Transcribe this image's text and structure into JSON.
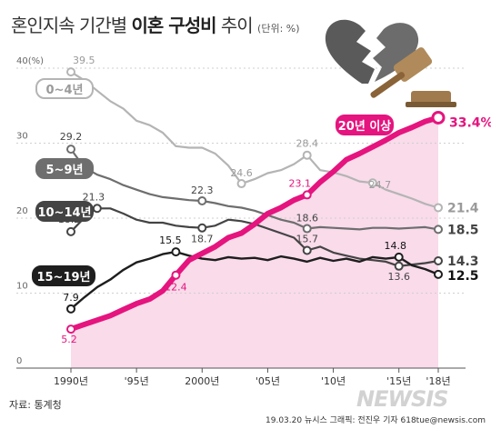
{
  "title": {
    "part1": "혼인지속 기간별",
    "part2": "이혼 구성비",
    "part3": "추이",
    "unit": "(단위: %)"
  },
  "source": "자료: 통계청",
  "credit": "19.03.20 뉴시스 그래픽: 전진우 기자 618tue@newsis.com",
  "watermark": "NEWSIS",
  "chart_data": {
    "type": "line",
    "title": "혼인지속 기간별 이혼 구성비 추이",
    "unit": "(단위: %)",
    "x": [
      1990,
      1991,
      1992,
      1993,
      1994,
      1995,
      1996,
      1997,
      1998,
      1999,
      2000,
      2001,
      2002,
      2003,
      2004,
      2005,
      2006,
      2007,
      2008,
      2009,
      2010,
      2011,
      2012,
      2013,
      2014,
      2015,
      2016,
      2017,
      2018
    ],
    "xtick_values": [
      1990,
      1995,
      2000,
      2005,
      2010,
      2015,
      2018
    ],
    "xtick_labels": [
      "1990년",
      "'95년",
      "2000년",
      "'05년",
      "'10년",
      "'15년",
      "'18년"
    ],
    "ylim": [
      0,
      40
    ],
    "ytick_values": [
      0,
      10,
      20,
      30,
      40
    ],
    "ytick_labels": [
      "0",
      "10",
      "20",
      "30",
      "40(%)"
    ],
    "grid": true,
    "series": [
      {
        "name": "0~4년",
        "color": "#b4b4b4",
        "values": [
          39.5,
          38.4,
          37.0,
          35.6,
          34.6,
          33.0,
          32.4,
          31.4,
          29.6,
          29.4,
          29.4,
          28.6,
          27.0,
          24.6,
          25.2,
          26.0,
          26.4,
          27.2,
          28.4,
          26.4,
          26.1,
          25.6,
          24.9,
          24.7,
          23.8,
          23.2,
          22.6,
          21.9,
          21.4
        ],
        "labels": [
          {
            "i": 0,
            "text": "39.5"
          },
          {
            "i": 13,
            "text": "24.6"
          },
          {
            "i": 18,
            "text": "28.4"
          },
          {
            "i": 23,
            "text": "24.7"
          },
          {
            "i": 28,
            "text": "21.4"
          }
        ]
      },
      {
        "name": "5~9년",
        "color": "#6e6e6e",
        "values": [
          29.2,
          26.8,
          25.8,
          25.2,
          24.4,
          23.8,
          23.2,
          22.8,
          22.6,
          22.4,
          22.3,
          22.0,
          21.6,
          21.4,
          21.0,
          20.4,
          19.8,
          19.4,
          18.6,
          18.8,
          18.7,
          18.6,
          18.5,
          18.7,
          18.7,
          18.6,
          18.7,
          18.8,
          18.5
        ],
        "labels": [
          {
            "i": 0,
            "text": "29.2"
          },
          {
            "i": 10,
            "text": "22.3"
          },
          {
            "i": 18,
            "text": "18.6"
          },
          {
            "i": 28,
            "text": "18.5"
          }
        ]
      },
      {
        "name": "10~14년",
        "color": "#444444",
        "values": [
          18.2,
          20.0,
          21.3,
          21.3,
          20.6,
          19.8,
          19.4,
          19.4,
          19.0,
          18.8,
          18.7,
          19.0,
          19.8,
          19.6,
          19.2,
          18.6,
          18.0,
          17.4,
          15.7,
          16.2,
          15.4,
          15.0,
          14.6,
          14.4,
          14.2,
          13.6,
          13.8,
          14.0,
          14.3
        ],
        "labels": [
          {
            "i": 0,
            "text": "18.2"
          },
          {
            "i": 2,
            "text": "21.3"
          },
          {
            "i": 10,
            "text": "18.7"
          },
          {
            "i": 18,
            "text": "15.7"
          },
          {
            "i": 25,
            "text": "13.6"
          },
          {
            "i": 28,
            "text": "14.3"
          }
        ]
      },
      {
        "name": "15~19년",
        "color": "#1e1e1e",
        "values": [
          7.9,
          9.4,
          10.8,
          11.8,
          13.1,
          14.1,
          14.6,
          15.2,
          15.5,
          15.0,
          14.6,
          14.4,
          14.8,
          14.6,
          14.7,
          14.4,
          14.9,
          14.6,
          14.2,
          14.7,
          14.3,
          14.6,
          14.2,
          14.8,
          14.6,
          14.8,
          13.7,
          13.2,
          12.5
        ],
        "labels": [
          {
            "i": 0,
            "text": "7.9"
          },
          {
            "i": 8,
            "text": "15.5"
          },
          {
            "i": 25,
            "text": "14.8"
          },
          {
            "i": 28,
            "text": "12.5"
          }
        ]
      },
      {
        "name": "20년 이상",
        "color": "#e5147e",
        "values": [
          5.2,
          5.8,
          6.4,
          7.0,
          7.8,
          8.6,
          9.2,
          10.3,
          12.4,
          14.4,
          15.3,
          16.2,
          17.4,
          18.0,
          19.2,
          20.6,
          21.4,
          22.4,
          23.1,
          24.8,
          26.2,
          27.8,
          28.6,
          29.5,
          30.4,
          31.4,
          32.1,
          32.9,
          33.4
        ],
        "labels": [
          {
            "i": 0,
            "text": "5.2"
          },
          {
            "i": 8,
            "text": "12.4"
          },
          {
            "i": 18,
            "text": "23.1"
          },
          {
            "i": 28,
            "text": "33.4%"
          }
        ]
      }
    ]
  }
}
